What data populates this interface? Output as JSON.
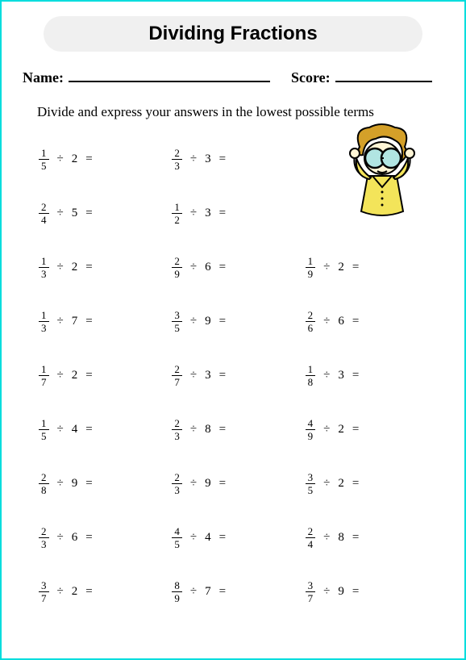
{
  "title": "Dividing Fractions",
  "name_label": "Name:",
  "score_label": "Score:",
  "instruction": "Divide and express your answers in the lowest possible terms",
  "divide_symbol": "÷",
  "equals_symbol": "=",
  "colors": {
    "border": "#00dddd",
    "title_bg": "#f0f0f0",
    "text": "#000000",
    "cartoon_hair": "#d4a029",
    "cartoon_skin": "#fef5d6",
    "cartoon_shirt": "#f3e45a",
    "cartoon_glasses": "#b1e5e2",
    "cartoon_outline": "#000000"
  },
  "problems": [
    {
      "num": "1",
      "den": "5",
      "div": "2"
    },
    {
      "num": "2",
      "den": "3",
      "div": "3"
    },
    null,
    {
      "num": "2",
      "den": "4",
      "div": "5"
    },
    {
      "num": "1",
      "den": "2",
      "div": "3"
    },
    null,
    {
      "num": "1",
      "den": "3",
      "div": "2"
    },
    {
      "num": "2",
      "den": "9",
      "div": "6"
    },
    {
      "num": "1",
      "den": "9",
      "div": "2"
    },
    {
      "num": "1",
      "den": "3",
      "div": "7"
    },
    {
      "num": "3",
      "den": "5",
      "div": "9"
    },
    {
      "num": "2",
      "den": "6",
      "div": "6"
    },
    {
      "num": "1",
      "den": "7",
      "div": "2"
    },
    {
      "num": "2",
      "den": "7",
      "div": "3"
    },
    {
      "num": "1",
      "den": "8",
      "div": "3"
    },
    {
      "num": "1",
      "den": "5",
      "div": "4"
    },
    {
      "num": "2",
      "den": "3",
      "div": "8"
    },
    {
      "num": "4",
      "den": "9",
      "div": "2"
    },
    {
      "num": "2",
      "den": "8",
      "div": "9"
    },
    {
      "num": "2",
      "den": "3",
      "div": "9"
    },
    {
      "num": "3",
      "den": "5",
      "div": "2"
    },
    {
      "num": "2",
      "den": "3",
      "div": "6"
    },
    {
      "num": "4",
      "den": "5",
      "div": "4"
    },
    {
      "num": "2",
      "den": "4",
      "div": "8"
    },
    {
      "num": "3",
      "den": "7",
      "div": "2"
    },
    {
      "num": "8",
      "den": "9",
      "div": "7"
    },
    {
      "num": "3",
      "den": "7",
      "div": "9"
    }
  ]
}
